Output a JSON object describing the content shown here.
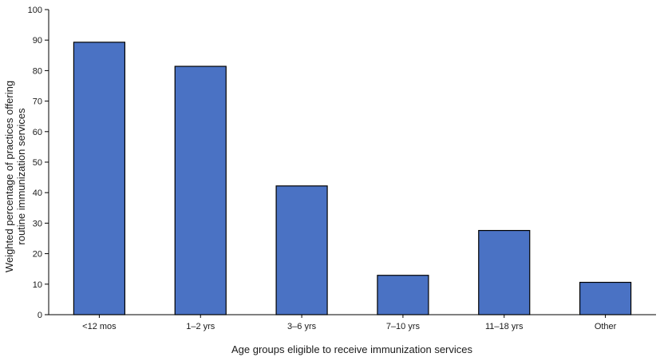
{
  "chart_data": {
    "type": "bar",
    "categories": [
      "<12 mos",
      "1–2 yrs",
      "3–6 yrs",
      "7–10 yrs",
      "11–18 yrs",
      "Other"
    ],
    "values": [
      89.3,
      81.4,
      42.2,
      12.9,
      27.6,
      10.6
    ],
    "xlabel": "Age groups eligible to receive immunization services",
    "ylabel_lines": [
      "Weighted percentage of practices offering",
      "routine immunization services"
    ],
    "ylim": [
      0,
      100
    ],
    "yticks": [
      0,
      10,
      20,
      30,
      40,
      50,
      60,
      70,
      80,
      90,
      100
    ],
    "grid": false,
    "bar_color": "#4a72c4",
    "bar_edge_color": "#000000"
  }
}
